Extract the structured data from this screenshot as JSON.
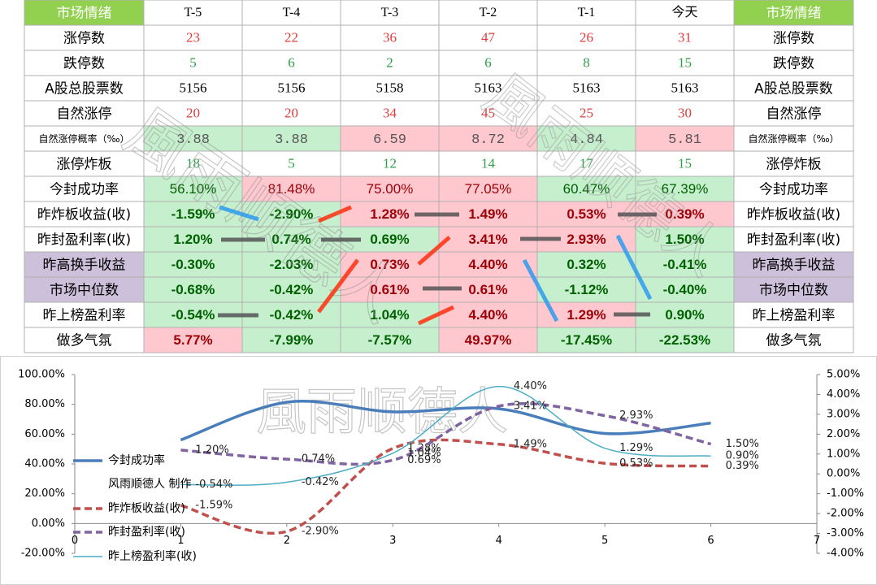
{
  "watermark": "風雨顺德人",
  "table": {
    "header": [
      "市场情绪",
      "T-5",
      "T-4",
      "T-3",
      "T-2",
      "T-1",
      "今天",
      "市场情绪"
    ],
    "header_fills": [
      "#92d050",
      "#ffffff",
      "#ffffff",
      "#ffffff",
      "#ffffff",
      "#ffffff",
      "#ffffff",
      "#92d050"
    ],
    "rows": [
      [
        "涨停数",
        "23",
        "22",
        "36",
        "47",
        "26",
        "31",
        "涨停数"
      ],
      [
        "跌停数",
        "5",
        "6",
        "2",
        "6",
        "8",
        "15",
        "跌停数"
      ],
      [
        "A股总股票数",
        "5156",
        "5156",
        "5158",
        "5163",
        "5163",
        "5163",
        "A股总股票数"
      ],
      [
        "自然涨停",
        "20",
        "20",
        "34",
        "45",
        "25",
        "30",
        "自然涨停"
      ],
      [
        "自然涨停概率（‰）",
        "3.88",
        "3.88",
        "6.59",
        "8.72",
        "4.84",
        "5.81",
        "自然涨停概率（‰）"
      ],
      [
        "涨停炸板",
        "18",
        "5",
        "12",
        "14",
        "17",
        "15",
        "涨停炸板"
      ],
      [
        "今封成功率",
        "56.10%",
        "81.48%",
        "75.00%",
        "77.05%",
        "60.47%",
        "67.39%",
        "今封成功率"
      ],
      [
        "昨炸板收益(收)",
        "-1.59%",
        "-2.90%",
        "1.28%",
        "1.49%",
        "0.53%",
        "0.39%",
        "昨炸板收益(收)"
      ],
      [
        "昨封盈利率(收)",
        "1.20%",
        "0.74%",
        "0.69%",
        "3.41%",
        "2.93%",
        "1.50%",
        "昨封盈利率(收)"
      ],
      [
        "昨高换手收益",
        "-0.30%",
        "-2.03%",
        "0.73%",
        "4.40%",
        "0.32%",
        "-0.41%",
        "昨高换手收益"
      ],
      [
        "市场中位数",
        "-0.68%",
        "-0.42%",
        "0.61%",
        "0.61%",
        "-1.12%",
        "-0.40%",
        "市场中位数"
      ],
      [
        "昨上榜盈利率",
        "-0.54%",
        "-0.42%",
        "1.04%",
        "4.40%",
        "1.29%",
        "0.90%",
        "昨上榜盈利率"
      ],
      [
        "做多气氛",
        "5.77%",
        "-7.99%",
        "-7.57%",
        "49.97%",
        "-17.45%",
        "-22.53%",
        "做多气氛"
      ]
    ],
    "fills": [
      [
        "#ffffff",
        "#ffffff",
        "#ffffff",
        "#ffffff",
        "#ffffff",
        "#ffffff",
        "#ffffff",
        "#ffffff"
      ],
      [
        "#ffffff",
        "#ffffff",
        "#ffffff",
        "#ffffff",
        "#ffffff",
        "#ffffff",
        "#ffffff",
        "#ffffff"
      ],
      [
        "#ffffff",
        "#ffffff",
        "#ffffff",
        "#ffffff",
        "#ffffff",
        "#ffffff",
        "#ffffff",
        "#ffffff"
      ],
      [
        "#ffffff",
        "#ffffff",
        "#ffffff",
        "#ffffff",
        "#ffffff",
        "#ffffff",
        "#ffffff",
        "#ffffff"
      ],
      [
        "#ffffff",
        "#c6efce",
        "#c6efce",
        "#ffc7ce",
        "#ffc7ce",
        "#c6efce",
        "#ffc7ce",
        "#ffffff"
      ],
      [
        "#ffffff",
        "#ffffff",
        "#ffffff",
        "#ffffff",
        "#ffffff",
        "#ffffff",
        "#ffffff",
        "#ffffff"
      ],
      [
        "#ffffff",
        "#c6efce",
        "#ffc7ce",
        "#ffc7ce",
        "#ffc7ce",
        "#c6efce",
        "#c6efce",
        "#ffffff"
      ],
      [
        "#ffffff",
        "#c6efce",
        "#c6efce",
        "#ffc7ce",
        "#ffc7ce",
        "#ffc7ce",
        "#ffc7ce",
        "#ffffff"
      ],
      [
        "#ffffff",
        "#c6efce",
        "#c6efce",
        "#c6efce",
        "#ffc7ce",
        "#ffc7ce",
        "#c6efce",
        "#ffffff"
      ],
      [
        "#ccc0da",
        "#c6efce",
        "#c6efce",
        "#ffc7ce",
        "#ffc7ce",
        "#c6efce",
        "#c6efce",
        "#ccc0da"
      ],
      [
        "#ccc0da",
        "#c6efce",
        "#c6efce",
        "#ffc7ce",
        "#ffc7ce",
        "#c6efce",
        "#c6efce",
        "#ccc0da"
      ],
      [
        "#ffffff",
        "#c6efce",
        "#c6efce",
        "#c6efce",
        "#ffc7ce",
        "#ffc7ce",
        "#c6efce",
        "#ffffff"
      ],
      [
        "#ffffff",
        "#ffc7ce",
        "#c6efce",
        "#c6efce",
        "#ffc7ce",
        "#c6efce",
        "#c6efce",
        "#ffffff"
      ]
    ],
    "row_colors": [
      "#e03c3c",
      "#2e9e4a",
      "#000000",
      "#e03c3c",
      "#555555",
      "#2e9e4a",
      null,
      null,
      null,
      null,
      null,
      null,
      null
    ]
  },
  "chart_data": {
    "type": "line",
    "x": [
      1,
      2,
      3,
      4,
      5,
      6
    ],
    "xlim": [
      0,
      7
    ],
    "xticks": [
      0,
      1,
      2,
      3,
      4,
      5,
      6,
      7
    ],
    "ylim": [
      -20,
      100
    ],
    "yticks": [
      {
        "value": 100,
        "label": "100.00%"
      },
      {
        "value": 80,
        "label": "80.00%"
      },
      {
        "value": 60,
        "label": "60.00%"
      },
      {
        "value": 40,
        "label": "40.00%"
      },
      {
        "value": 20,
        "label": "20.00%"
      },
      {
        "value": 0,
        "label": "0.00%"
      },
      {
        "value": -20,
        "label": "-20.00%"
      }
    ],
    "y2lim": [
      -4,
      5
    ],
    "y2ticks": [
      {
        "value": 5,
        "label": "5.00%"
      },
      {
        "value": 4,
        "label": "4.00%"
      },
      {
        "value": 3,
        "label": "3.00%"
      },
      {
        "value": 2,
        "label": "2.00%"
      },
      {
        "value": 1,
        "label": "1.00%"
      },
      {
        "value": 0,
        "label": "0.00%"
      },
      {
        "value": -1,
        "label": "-1.00%"
      },
      {
        "value": -2,
        "label": "-2.00%"
      },
      {
        "value": -3,
        "label": "-3.00%"
      },
      {
        "value": -4,
        "label": "-4.00%"
      }
    ],
    "legend_extra": "风雨顺德人 制作",
    "series": [
      {
        "name": "今封成功率",
        "color": "#4a7ebb",
        "line_style": "solid",
        "values": [
          56.1,
          81.48,
          75.0,
          77.05,
          60.47,
          67.39
        ]
      },
      {
        "name": "昨炸板收益(收)",
        "color": "#c0504d",
        "line_style": "dashed",
        "axis": "y2",
        "values": [
          -1.59,
          -2.9,
          1.28,
          1.49,
          0.53,
          0.39
        ],
        "value_labels": [
          "-1.59%",
          "-2.90%",
          "1.28%",
          "1.49%",
          "0.53%",
          "0.39%"
        ]
      },
      {
        "name": "昨封盈利率(收)",
        "color": "#8064a2",
        "line_style": "dashed",
        "axis": "y2",
        "values": [
          1.2,
          0.74,
          0.69,
          3.41,
          2.93,
          1.5
        ],
        "value_labels": [
          "1.20%",
          "0.74%",
          "0.69%",
          "3.41%",
          "2.93%",
          "1.50%"
        ]
      },
      {
        "name": "昨上榜盈利率(收)",
        "color": "#4bacc6",
        "line_style": "thin",
        "axis": "y2",
        "values": [
          -0.54,
          -0.42,
          1.04,
          4.4,
          1.29,
          0.9
        ],
        "value_labels": [
          "-0.54%",
          "-0.42%",
          "1.04%",
          "4.40%",
          "1.29%",
          "0.90%"
        ]
      }
    ]
  }
}
